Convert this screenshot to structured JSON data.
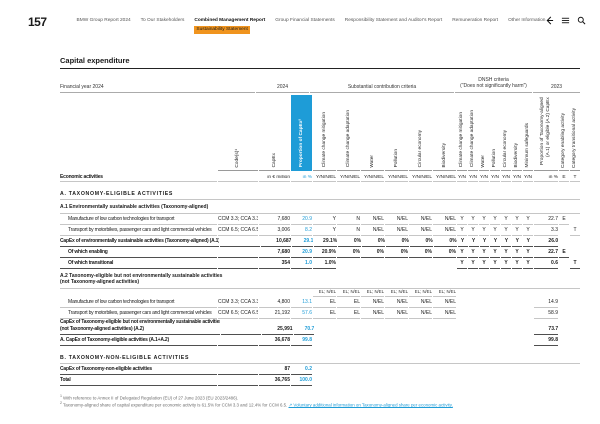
{
  "colors": {
    "accent_blue": "#1e9cd7",
    "highlight_orange": "#f0941e"
  },
  "page": {
    "number": "157"
  },
  "nav": {
    "items": [
      "BMW Group Report 2024",
      "To Our Stakeholders",
      "Combined Management Report",
      "Group Financial Statements",
      "Responsibility Statement and Auditor's Report",
      "Remuneration Report",
      "Other Information"
    ],
    "active_item": "Combined Management Report",
    "active_sub": "Sustainability Statement"
  },
  "icons": {
    "back": "back-arrow-icon",
    "toc": "list-icon",
    "search": "search-icon"
  },
  "title": "Capital expenditure",
  "table": {
    "meta": {
      "financial_year": "Financial year 2024",
      "year": "2024",
      "substantial": "Substantial contribution criteria",
      "dnsh_line1": "DNSH criteria",
      "dnsh_line2": "(“Does not significantly harm”)",
      "prev_year": "2023"
    },
    "rotated": {
      "code": "Code(s)¹",
      "capex": "CapEx",
      "prop": "Proportion of CapEx²",
      "sc": [
        "Climate change mitigation",
        "Climate change adaptation",
        "Water",
        "Pollution",
        "Circular economy",
        "Biodiversity"
      ],
      "dnsh": [
        "Climate change mitigation",
        "Climate change adaptation",
        "Water",
        "Pollution",
        "Circular economy",
        "Biodiversity",
        "Minimum safeguards"
      ],
      "prev": "Proportion of Taxonomy-aligned (A.1) or eligible (A.2) CapEx",
      "cat_e": "Category enabling activity",
      "cat_t": "Category transitional activity"
    },
    "units": {
      "label": "Economic activities",
      "capex": "in € million",
      "prop": "in %",
      "sc": "Y/N/N/EL",
      "dnsh": "Y/N",
      "prev": "in %",
      "cat_e": "E",
      "cat_t": "T"
    },
    "rows": [
      {
        "t": "section",
        "label": "A. TAXONOMY-ELIGIBLE ACTIVITIES"
      },
      {
        "t": "subsection",
        "label": "A.1 Environmentally sustainable activities (Taxonomy-aligned)"
      },
      {
        "t": "data",
        "indent": true,
        "label": "Manufacture of low carbon technologies for transport",
        "code": "CCM 3.3; CCA 3.3",
        "capex": "7,680",
        "prop": "20.9",
        "sc": [
          "Y",
          "N",
          "N/EL",
          "N/EL",
          "N/EL",
          "N/EL"
        ],
        "dnsh": [
          "Y",
          "Y",
          "Y",
          "Y",
          "Y",
          "Y",
          "Y"
        ],
        "prev": "22.7",
        "e": "E",
        "tt": ""
      },
      {
        "t": "data",
        "indent": true,
        "label": "Transport by motorbikes, passenger cars and light commercial vehicles",
        "code": "CCM 6.5; CCA 6.5",
        "capex": "3,006",
        "prop": "8.2",
        "sc": [
          "Y",
          "N",
          "N/EL",
          "N/EL",
          "N/EL",
          "N/EL"
        ],
        "dnsh": [
          "Y",
          "Y",
          "Y",
          "Y",
          "Y",
          "Y",
          "Y"
        ],
        "prev": "3.3",
        "e": "",
        "tt": "T"
      },
      {
        "t": "total",
        "label": "CapEx of environmentally sustainable activities (Taxonomy-aligned) (A.1)",
        "code": "",
        "capex": "10,687",
        "prop": "29.1",
        "sc": [
          "29.1%",
          "0%",
          "0%",
          "0%",
          "0%",
          "0%"
        ],
        "dnsh": [
          "Y",
          "Y",
          "Y",
          "Y",
          "Y",
          "Y",
          "Y"
        ],
        "prev": "26.0",
        "e": "",
        "tt": ""
      },
      {
        "t": "total",
        "indent": true,
        "label": "Of which enabling",
        "code": "",
        "capex": "7,680",
        "prop": "20.9",
        "sc": [
          "20.9%",
          "0%",
          "0%",
          "0%",
          "0%",
          "0%"
        ],
        "dnsh": [
          "Y",
          "Y",
          "Y",
          "Y",
          "Y",
          "Y",
          "Y"
        ],
        "prev": "22.7",
        "e": "E",
        "tt": ""
      },
      {
        "t": "total",
        "indent": true,
        "label": "Of which transitional",
        "code": "",
        "capex": "354",
        "prop": "1.0",
        "sc": [
          "1.0%",
          "",
          "",
          "",
          "",
          ""
        ],
        "dnsh": [
          "Y",
          "Y",
          "Y",
          "Y",
          "Y",
          "Y",
          "Y"
        ],
        "prev": "0.6",
        "e": "",
        "tt": "T"
      },
      {
        "t": "subsection",
        "label": "A.2 Taxonomy-eligible but not environmentally sustainable activities",
        "label2": "(not Taxonomy-aligned activities)"
      },
      {
        "t": "elheader",
        "sc": [
          "EL; N/EL",
          "EL; N/EL",
          "EL; N/EL",
          "EL; N/EL",
          "EL; N/EL",
          "EL; N/EL"
        ]
      },
      {
        "t": "data",
        "indent": true,
        "label": "Manufacture of low carbon technologies for transport",
        "code": "CCM 3.3; CCA 3.3",
        "capex": "4,800",
        "prop": "13.1",
        "sc": [
          "EL",
          "EL",
          "N/EL",
          "N/EL",
          "N/EL",
          "N/EL"
        ],
        "dnsh": [
          "",
          "",
          "",
          "",
          "",
          "",
          ""
        ],
        "prev": "14.9",
        "e": "",
        "tt": ""
      },
      {
        "t": "data",
        "indent": true,
        "label": "Transport by motorbikes, passenger cars and light commercial vehicles",
        "code": "CCM 6.5; CCA 6.5",
        "capex": "21,192",
        "prop": "57.6",
        "sc": [
          "EL",
          "EL",
          "N/EL",
          "N/EL",
          "N/EL",
          "N/EL"
        ],
        "dnsh": [
          "",
          "",
          "",
          "",
          "",
          "",
          ""
        ],
        "prev": "58.9",
        "e": "",
        "tt": ""
      },
      {
        "t": "total",
        "label": "CapEx of Taxonomy-eligible but not environmentally sustainable activities",
        "label2": "(not Taxonomy-aligned activities) (A.2)",
        "code": "",
        "capex": "25,991",
        "prop": "70.7",
        "sc": [
          "",
          "",
          "",
          "",
          "",
          ""
        ],
        "dnsh": [
          "",
          "",
          "",
          "",
          "",
          "",
          ""
        ],
        "prev": "73.7",
        "e": "",
        "tt": ""
      },
      {
        "t": "total",
        "label": "A. CapEx of Taxonomy-eligible activities (A.1+A.2)",
        "code": "",
        "capex": "36,678",
        "prop": "99.8",
        "sc": [
          "",
          "",
          "",
          "",
          "",
          ""
        ],
        "dnsh": [
          "",
          "",
          "",
          "",
          "",
          "",
          ""
        ],
        "prev": "99.8",
        "e": "",
        "tt": ""
      },
      {
        "t": "section",
        "label": "B. TAXONOMY-NON-ELIGIBLE ACTIVITIES"
      },
      {
        "t": "total",
        "label": "CapEx of Taxonomy-non-eligible activities",
        "code": "",
        "capex": "87",
        "prop": "0.2",
        "sc": [
          "",
          "",
          "",
          "",
          "",
          ""
        ],
        "dnsh": [
          "",
          "",
          "",
          "",
          "",
          "",
          ""
        ],
        "prev": "",
        "e": "",
        "tt": ""
      },
      {
        "t": "total",
        "label": "Total",
        "code": "",
        "capex": "36,765",
        "prop": "100.0",
        "sc": [
          "",
          "",
          "",
          "",
          "",
          ""
        ],
        "dnsh": [
          "",
          "",
          "",
          "",
          "",
          "",
          ""
        ],
        "prev": "",
        "e": "",
        "tt": ""
      }
    ]
  },
  "footnotes": [
    {
      "marker": "1",
      "text": "With reference to Annex II of Delegated Regulation (EU) of 27 June 2023 (EU 2023/2486).",
      "link": ""
    },
    {
      "marker": "2",
      "text": "Taxonomy-aligned share of capital expenditure per economic activity is 61.5% for CCM 3.3 and 12.4% for CCM 6.5. ",
      "link": "↗ Voluntary additional information on Taxonomy-aligned share per economic activity."
    }
  ]
}
